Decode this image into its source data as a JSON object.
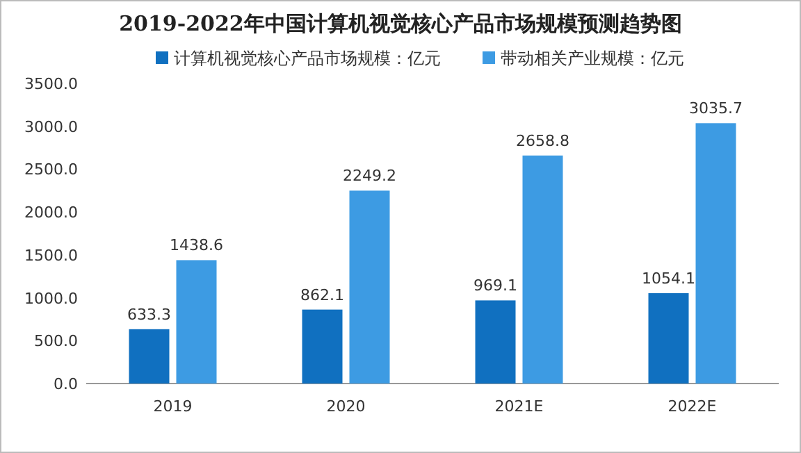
{
  "chart_data": {
    "type": "bar",
    "title": "2019-2022年中国计算机视觉核心产品市场规模预测趋势图",
    "categories": [
      "2019",
      "2020",
      "2021E",
      "2022E"
    ],
    "series": [
      {
        "name": "计算机视觉核心产品市场规模：亿元",
        "color": "#1070c0",
        "values": [
          633.3,
          862.1,
          969.1,
          1054.1
        ]
      },
      {
        "name": "带动相关产业规模：亿元",
        "color": "#3d9be3",
        "values": [
          1438.6,
          2249.2,
          2658.8,
          3035.7
        ]
      }
    ],
    "ylim": [
      0,
      3500
    ],
    "yticks": [
      {
        "value": 0,
        "label": "0.0"
      },
      {
        "value": 500,
        "label": "500.0"
      },
      {
        "value": 1000,
        "label": "1000.0"
      },
      {
        "value": 1500,
        "label": "1500.0"
      },
      {
        "value": 2000,
        "label": "2000.0"
      },
      {
        "value": 2500,
        "label": "2500.0"
      },
      {
        "value": 3000,
        "label": "3000.0"
      },
      {
        "value": 3500,
        "label": "3500.0"
      }
    ],
    "data_labels": true,
    "legend": "top left",
    "grid": false
  }
}
